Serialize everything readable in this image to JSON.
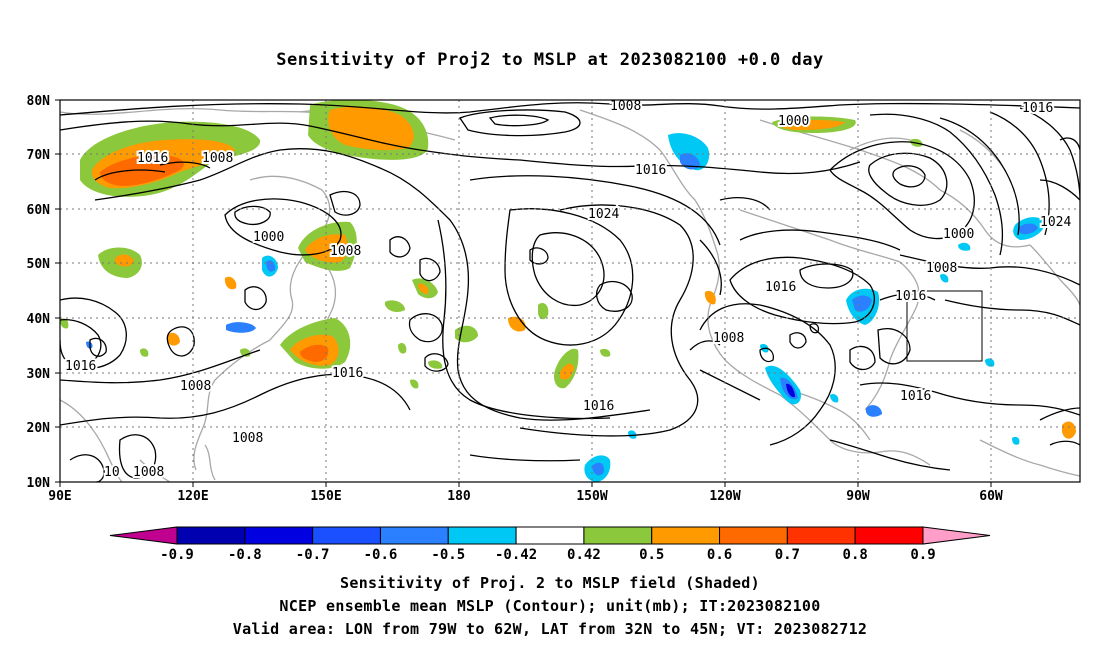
{
  "title": "Sensitivity of Proj2 to MSLP at 2023082100 +0.0 day",
  "axes": {
    "lat_labels": [
      "80N",
      "70N",
      "60N",
      "50N",
      "40N",
      "30N",
      "20N",
      "10N"
    ],
    "lon_labels": [
      "90E",
      "120E",
      "150E",
      "180",
      "150W",
      "120W",
      "90W",
      "60W"
    ]
  },
  "contour_labels": [
    {
      "id": "c1",
      "text": "1008"
    },
    {
      "id": "c2",
      "text": "1016"
    },
    {
      "id": "c3",
      "text": "1008"
    },
    {
      "id": "c4",
      "text": "1000"
    },
    {
      "id": "c5",
      "text": "1016"
    },
    {
      "id": "c6",
      "text": "1024"
    },
    {
      "id": "c7",
      "text": "1000"
    },
    {
      "id": "c8",
      "text": "1008"
    },
    {
      "id": "c9",
      "text": "1016"
    },
    {
      "id": "c10",
      "text": "1016"
    },
    {
      "id": "c11",
      "text": "1016"
    },
    {
      "id": "c12",
      "text": "1008"
    },
    {
      "id": "c13",
      "text": "1008"
    },
    {
      "id": "c14",
      "text": "1016"
    },
    {
      "id": "c15",
      "text": "1016"
    },
    {
      "id": "c16",
      "text": "1008"
    },
    {
      "id": "c17",
      "text": "1000"
    },
    {
      "id": "c18",
      "text": "1024"
    },
    {
      "id": "c19",
      "text": "1016"
    },
    {
      "id": "c20",
      "text": "1016"
    },
    {
      "id": "c21",
      "text": "1008"
    },
    {
      "id": "c22",
      "text": "10"
    },
    {
      "id": "c23",
      "text": "1008"
    }
  ],
  "colorbar": {
    "labels": [
      "-0.9",
      "-0.8",
      "-0.7",
      "-0.6",
      "-0.5",
      "-0.42",
      "0.42",
      "0.5",
      "0.6",
      "0.7",
      "0.8",
      "0.9"
    ],
    "colors": [
      "#c0008f",
      "#0000b0",
      "#0000e0",
      "#1a50ff",
      "#2a80ff",
      "#00c8f5",
      "#ffffff",
      "#8cc83c",
      "#ff9a00",
      "#ff6a00",
      "#ff3200",
      "#ff0000",
      "#ff9ec8"
    ]
  },
  "shading_colors": {
    "green": "#8cc83c",
    "orange": "#ff9a00",
    "dark_orange": "#ff6a00",
    "red_orange": "#ff3200",
    "cyan": "#00c8f5",
    "light_blue": "#2a80ff",
    "blue": "#0000e0"
  },
  "captions": {
    "line1": "Sensitivity of Proj. 2 to MSLP field (Shaded)",
    "line2": "NCEP ensemble mean MSLP (Contour); unit(mb); IT:2023082100",
    "line3": "Valid area: LON from 79W to 62W, LAT from 32N to 45N; VT: 2023082712"
  }
}
